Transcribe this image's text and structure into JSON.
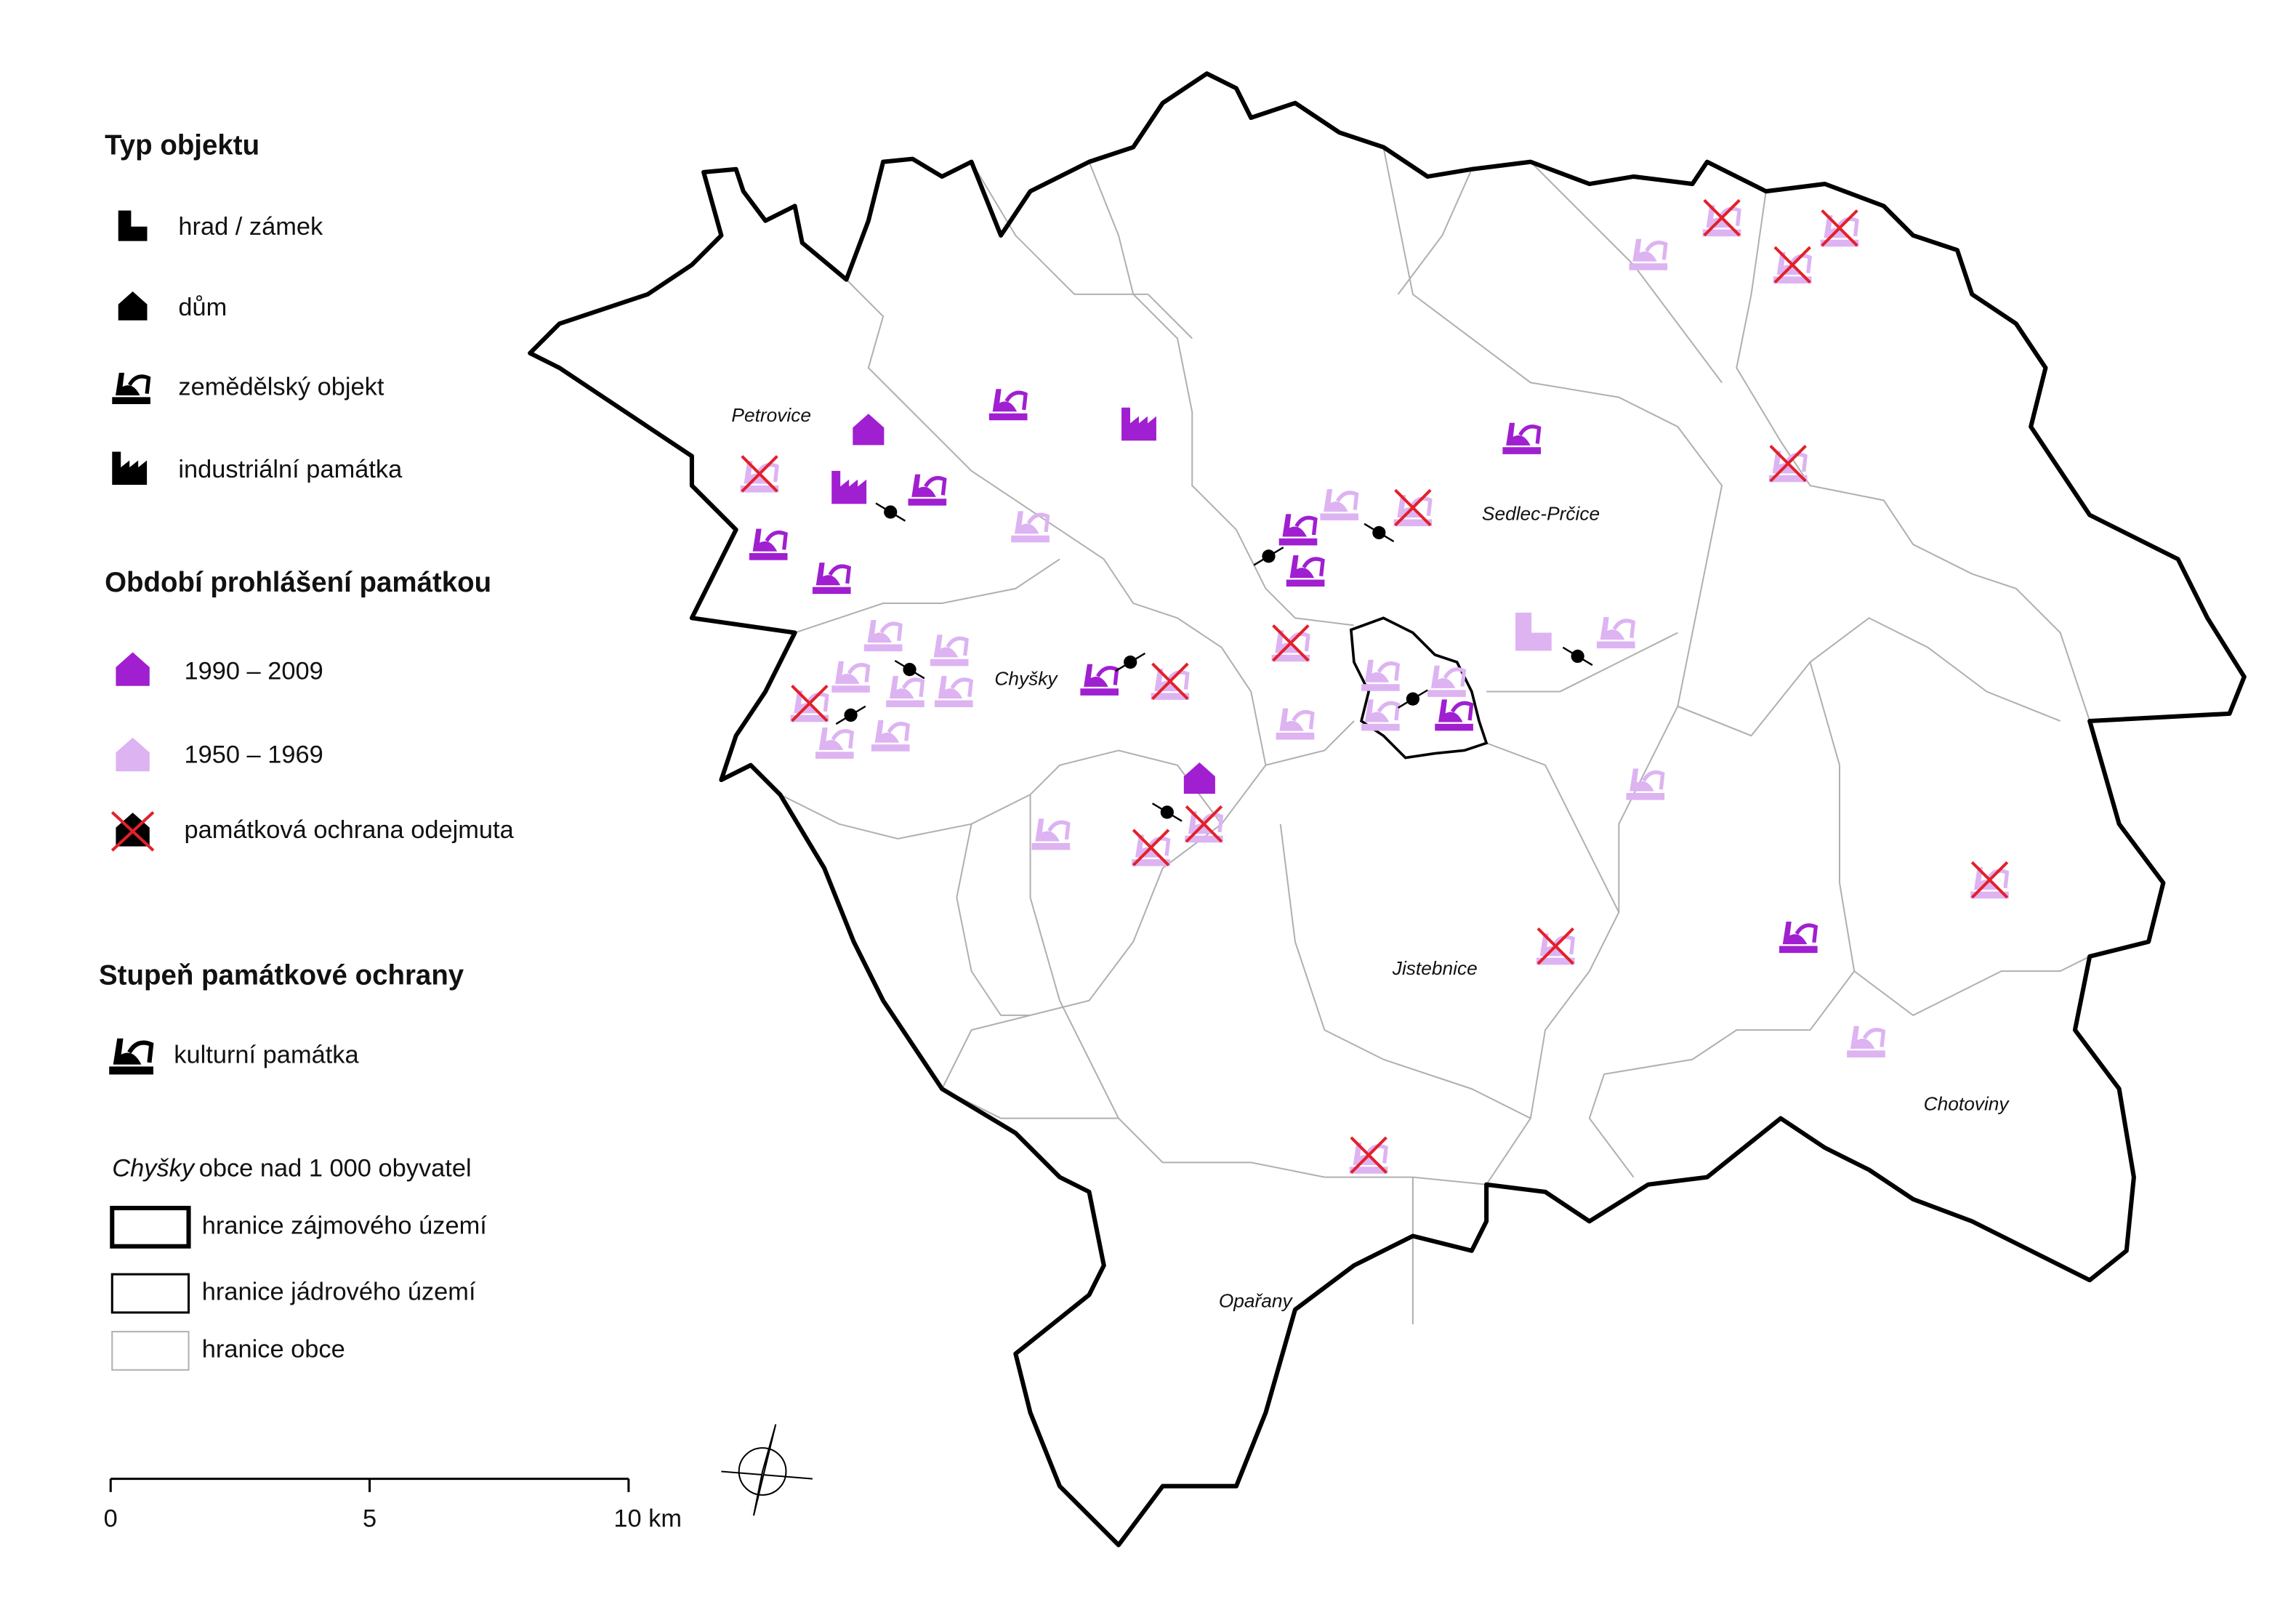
{
  "legend": {
    "object_type": {
      "title": "Typ objektu",
      "items": [
        "hrad / zámek",
        "dům",
        "zemědělský objekt",
        "industriální památka"
      ]
    },
    "period": {
      "title": "Období prohlášení památkou",
      "items": [
        "1990 – 2009",
        "1950 – 1969",
        "památková ochrana odejmuta"
      ]
    },
    "protection": {
      "title": "Stupeň památkové ochrany",
      "items": [
        "kulturní památka"
      ]
    },
    "boundaries": {
      "town_example": "Chyšky",
      "town_note": "obce nad 1 000 obyvatel",
      "items": [
        "hranice zájmového území",
        "hranice jádrového území",
        "hranice obce"
      ]
    }
  },
  "towns": [
    "Petrovice",
    "Chyšky",
    "Sedlec-Prčice",
    "Jistebnice",
    "Chotoviny",
    "Opařany"
  ],
  "scale_bar": {
    "labels": [
      "0",
      "5",
      "10 km"
    ]
  }
}
